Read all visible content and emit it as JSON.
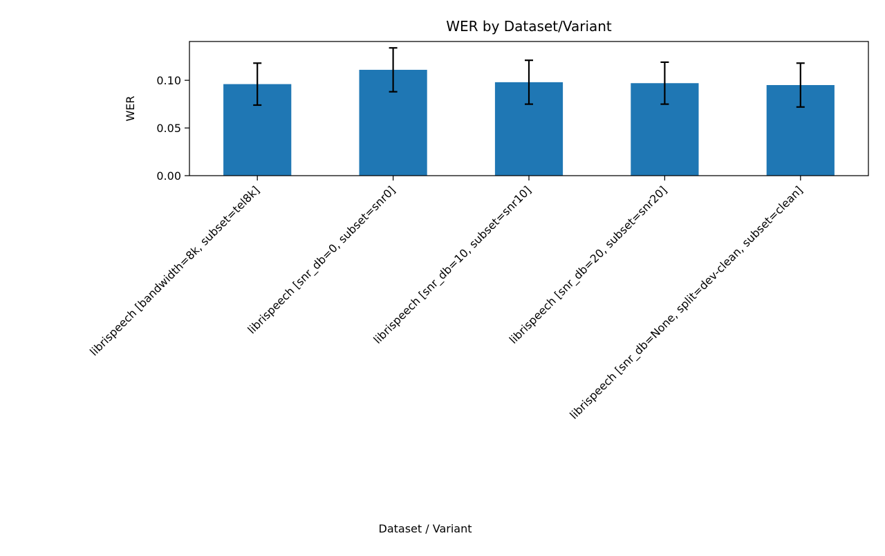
{
  "chart_data": {
    "type": "bar",
    "title": "WER by Dataset/Variant",
    "xlabel": "Dataset / Variant",
    "ylabel": "WER",
    "categories": [
      "librispeech [bandwidth=8k, subset=tel8k]",
      "librispeech [snr_db=0, subset=snr0]",
      "librispeech [snr_db=10, subset=snr10]",
      "librispeech [snr_db=20, subset=snr20]",
      "librispeech [snr_db=None, split=dev-clean, subset=clean]"
    ],
    "values": [
      0.096,
      0.111,
      0.098,
      0.097,
      0.095
    ],
    "error": [
      0.022,
      0.023,
      0.023,
      0.022,
      0.023
    ],
    "ylim": [
      0,
      0.1407
    ],
    "yticks": [
      0.0,
      0.05,
      0.1
    ],
    "ytick_labels": [
      "0.00",
      "0.05",
      "0.10"
    ],
    "grid": false,
    "bar_color": "#1f77b4",
    "error_color": "#000000"
  }
}
